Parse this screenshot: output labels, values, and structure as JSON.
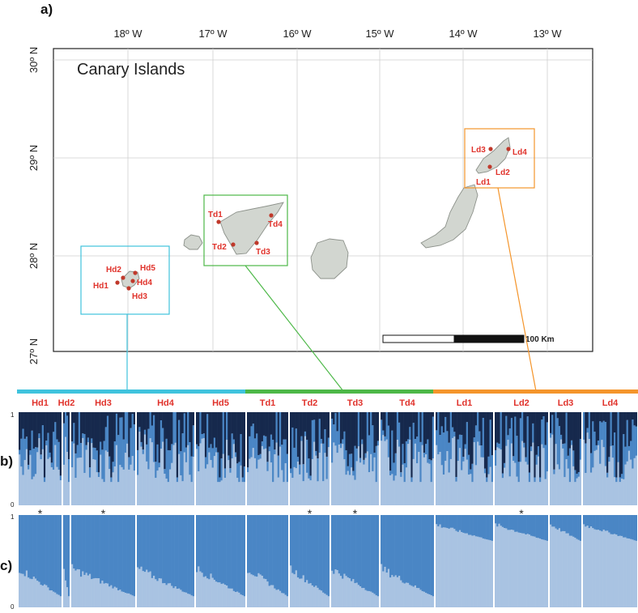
{
  "panels": {
    "a": "a)",
    "b": "b)",
    "c": "c)"
  },
  "map": {
    "title": "Canary Islands",
    "lon_labels": [
      "18º W",
      "17º W",
      "16º W",
      "15º W",
      "14º W",
      "13º W"
    ],
    "lat_labels": [
      "30º N",
      "29º N",
      "28º N",
      "27º N"
    ],
    "scalebar_label": "100 Km",
    "sites": {
      "H": [
        "Hd1",
        "Hd2",
        "Hd3",
        "Hd4",
        "Hd5"
      ],
      "T": [
        "Td1",
        "Td2",
        "Td3",
        "Td4"
      ],
      "L": [
        "Ld1",
        "Ld2",
        "Ld3",
        "Ld4"
      ]
    },
    "box_colors": {
      "H": "#3fc3dd",
      "T": "#4db848",
      "L": "#f4952b"
    },
    "island_fill": "#d2d6d0",
    "site_color": "#c0392b"
  },
  "structure": {
    "population_labels": [
      "Hd1",
      "Hd2",
      "Hd3",
      "Hd4",
      "Hd5",
      "Td1",
      "Td2",
      "Td3",
      "Td4",
      "Ld1",
      "Ld2",
      "Ld3",
      "Ld4"
    ],
    "island_groups": [
      {
        "color": "#3fc3dd",
        "populations": 5
      },
      {
        "color": "#4db848",
        "populations": 4
      },
      {
        "color": "#f4952b",
        "populations": 4
      }
    ],
    "asterisk": "*",
    "asterisk_populations": [
      "Hd1",
      "Hd3",
      "Td2",
      "Td3",
      "Ld2"
    ],
    "y_ticks": [
      "1",
      "0"
    ],
    "colors": {
      "light": "#a9c3e2",
      "mid": "#4a86c5",
      "dark": "#16294d"
    }
  }
}
